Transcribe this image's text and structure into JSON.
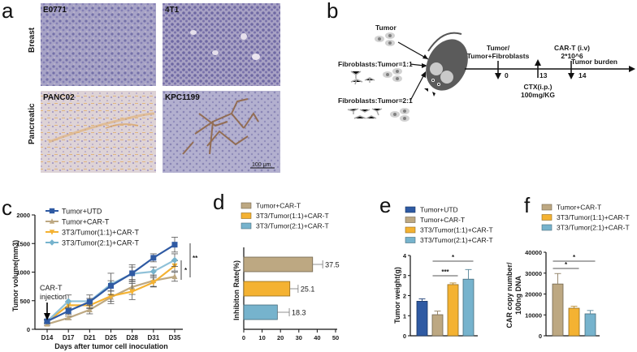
{
  "panel_labels": {
    "a": "a",
    "b": "b",
    "c": "c",
    "d": "d",
    "e": "e",
    "f": "f"
  },
  "panel_a": {
    "row_labels": [
      "Breast",
      "Pancreatic"
    ],
    "images": [
      {
        "label": "E0771",
        "row": "Breast"
      },
      {
        "label": "4T1",
        "row": "Breast"
      },
      {
        "label": "PANC02",
        "row": "Pancreatic"
      },
      {
        "label": "KPC1199",
        "row": "Pancreatic"
      }
    ],
    "scale_bar": "100 μm"
  },
  "panel_b": {
    "groups": [
      "Tumor",
      "Fibroblasts:Tumor=1:1",
      "Fibroblasts:Tumor=2:1"
    ],
    "timeline": {
      "end_label": "Tumor burden",
      "events": [
        {
          "day": "0",
          "label_line1": "Tumor/",
          "label_line2": "Tumor+Fibroblasts",
          "direction": "down"
        },
        {
          "day": "13",
          "label_line1": "CTX(i.p.)",
          "label_line2": "100mg/KG",
          "direction": "up"
        },
        {
          "day": "14",
          "label_line1": "CAR-T (i.v)",
          "label_line2": "2*10^6",
          "direction": "down"
        }
      ]
    }
  },
  "colors": {
    "tumor_utd": "#2f5aa3",
    "tumor_cart": "#bda882",
    "t3_11": "#f4b232",
    "t3_21": "#76b3cd",
    "t3_21_line": "#8fc1d8"
  },
  "chart_data": [
    {
      "id": "c",
      "type": "line",
      "title": "",
      "xlabel": "Days after tumor cell inoculation",
      "ylabel": "Tumor volume(mm3)",
      "categories": [
        "D14",
        "D17",
        "D21",
        "D25",
        "D28",
        "D31",
        "D35"
      ],
      "yticks": [
        0,
        500,
        1000,
        1500,
        2000
      ],
      "ylim": [
        0,
        2000
      ],
      "annotation": "CAR-T injection",
      "annotation_lines": [
        "CAR-T",
        "injection"
      ],
      "significance": [
        "*",
        "**"
      ],
      "series": [
        {
          "name": "Tumor+UTD",
          "marker": "square",
          "values": [
            140,
            320,
            480,
            760,
            980,
            1250,
            1480
          ],
          "errors": [
            30,
            60,
            60,
            90,
            150,
            70,
            130
          ]
        },
        {
          "name": "Tumor+CAR-T",
          "marker": "triangle-up",
          "values": [
            90,
            200,
            340,
            560,
            740,
            850,
            920
          ],
          "errors": [
            20,
            30,
            70,
            110,
            130,
            100,
            80
          ]
        },
        {
          "name": "3T3/Tumor(1:1)+CAR-T",
          "marker": "triangle-down",
          "values": [
            130,
            420,
            420,
            580,
            660,
            820,
            1110
          ],
          "errors": [
            30,
            60,
            60,
            90,
            140,
            80,
            90
          ]
        },
        {
          "name": "3T3/Tumor(2:1)+CAR-T",
          "marker": "diamond",
          "values": [
            140,
            490,
            490,
            790,
            970,
            1010,
            1210
          ],
          "errors": [
            30,
            110,
            110,
            190,
            120,
            80,
            110
          ]
        }
      ],
      "legend_position": "top-left"
    },
    {
      "id": "d",
      "type": "bar",
      "orientation": "horizontal",
      "ylabel": "Inhibiton Rate(%)",
      "xticks": [
        0,
        10,
        20,
        30,
        40,
        50
      ],
      "xlim": [
        0,
        50
      ],
      "categories": [
        "Tumor+CAR-T",
        "3T3/Tumor(1:1)+CAR-T",
        "3T3/Tumor(2:1)+CAR-T"
      ],
      "values": [
        37.5,
        25.1,
        18.3
      ],
      "errors": [
        5.5,
        4.5,
        6.5
      ],
      "value_labels": [
        "37.5",
        "25.1",
        "18.3"
      ],
      "legend_position": "top"
    },
    {
      "id": "e",
      "type": "bar",
      "ylabel": "Tumor weight(g)",
      "yticks": [
        0,
        1,
        2,
        3,
        4
      ],
      "ylim": [
        0,
        4
      ],
      "categories": [
        "Tumor+UTD",
        "Tumor+CAR-T",
        "3T3/Tumor(1:1)+CAR-T",
        "3T3/Tumor(2:1)+CAR-T"
      ],
      "values": [
        1.72,
        1.05,
        2.55,
        2.82
      ],
      "errors": [
        0.12,
        0.18,
        0.08,
        0.48
      ],
      "significance": [
        {
          "from": 1,
          "to": 2,
          "label": "***"
        },
        {
          "from": 1,
          "to": 3,
          "label": "*"
        }
      ],
      "legend_position": "top"
    },
    {
      "id": "f",
      "type": "bar",
      "ylabel": "CAR copy number/ 100ng DNA",
      "ylabel_lines": [
        "CAR copy number/",
        "100ng DNA"
      ],
      "yticks": [
        0,
        10000,
        20000,
        30000,
        40000
      ],
      "ylim": [
        0,
        40000
      ],
      "categories": [
        "Tumor+CAR-T",
        "3T3/Tumor(1:1)+CAR-T",
        "3T3/Tumor(2:1)+CAR-T"
      ],
      "values": [
        24800,
        13200,
        10500
      ],
      "errors": [
        5000,
        900,
        1600
      ],
      "significance": [
        {
          "from": 0,
          "to": 1,
          "label": "*"
        },
        {
          "from": 0,
          "to": 2,
          "label": "*"
        }
      ],
      "legend_position": "top"
    }
  ]
}
